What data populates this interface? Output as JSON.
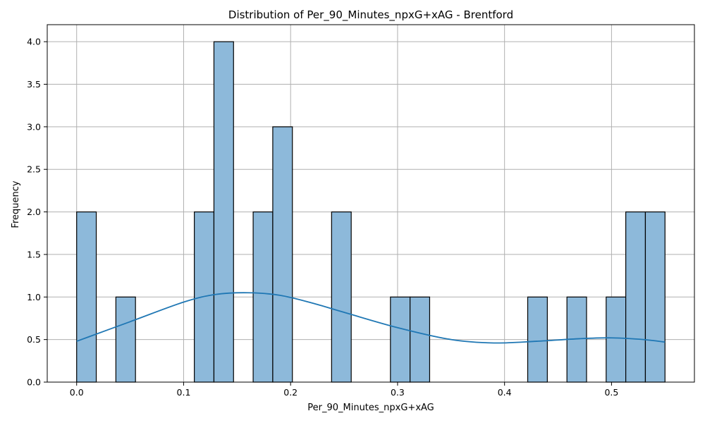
{
  "chart_data": {
    "type": "histogram",
    "title": "Distribution of Per_90_Minutes_npxG+xAG - Brentford",
    "xlabel": "Per_90_Minutes_npxG+xAG",
    "ylabel": "Frequency",
    "xlim": [
      -0.0275,
      0.5775
    ],
    "ylim": [
      0,
      4.2
    ],
    "x_ticks": [
      0.0,
      0.1,
      0.2,
      0.3,
      0.4,
      0.5
    ],
    "x_tick_labels": [
      "0.0",
      "0.1",
      "0.2",
      "0.3",
      "0.4",
      "0.5"
    ],
    "y_ticks": [
      0.0,
      0.5,
      1.0,
      1.5,
      2.0,
      2.5,
      3.0,
      3.5,
      4.0
    ],
    "y_tick_labels": [
      "0.0",
      "0.5",
      "1.0",
      "1.5",
      "2.0",
      "2.5",
      "3.0",
      "3.5",
      "4.0"
    ],
    "grid": true,
    "bin_start": 0.0,
    "bin_width": 0.018333,
    "counts": [
      2,
      0,
      1,
      0,
      0,
      0,
      2,
      4,
      0,
      2,
      3,
      0,
      0,
      2,
      0,
      0,
      1,
      1,
      0,
      0,
      0,
      0,
      0,
      1,
      0,
      1,
      0,
      1,
      2,
      2
    ],
    "bar_color": "#8db9da",
    "bar_edge_color": "#000000",
    "kde": {
      "color": "#1f77b4",
      "x": [
        0.0,
        0.05,
        0.1,
        0.13,
        0.16,
        0.19,
        0.22,
        0.25,
        0.3,
        0.35,
        0.39,
        0.43,
        0.47,
        0.5,
        0.53,
        0.55
      ],
      "y": [
        0.48,
        0.71,
        0.94,
        1.03,
        1.05,
        1.02,
        0.93,
        0.82,
        0.64,
        0.5,
        0.46,
        0.48,
        0.51,
        0.52,
        0.5,
        0.47
      ]
    }
  }
}
